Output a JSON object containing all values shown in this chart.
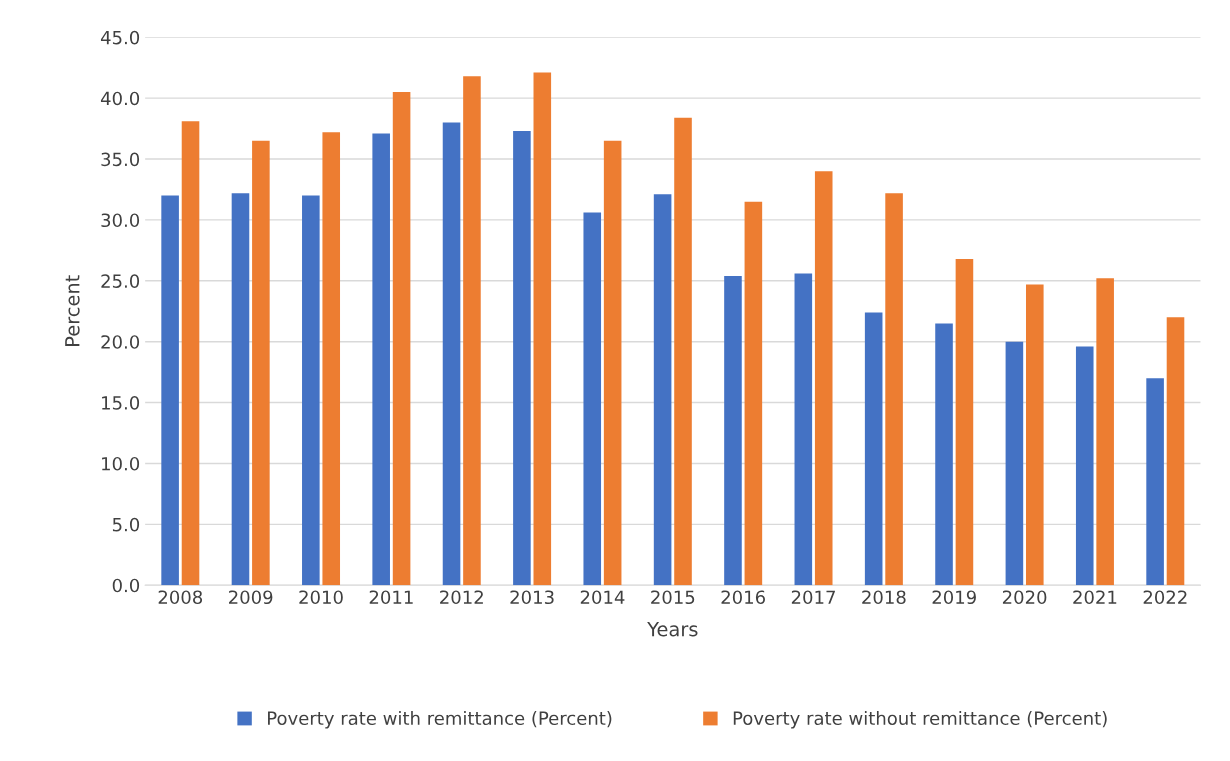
{
  "chart_data": {
    "type": "bar",
    "xlabel": "Years",
    "ylabel": "Percent",
    "categories": [
      "2008",
      "2009",
      "2010",
      "2011",
      "2012",
      "2013",
      "2014",
      "2015",
      "2016",
      "2017",
      "2018",
      "2019",
      "2020",
      "2021",
      "2022"
    ],
    "series": [
      {
        "name": "Poverty rate with remittance (Percent)",
        "color": "#4472c4",
        "values": [
          32.0,
          32.2,
          32.0,
          37.1,
          38.0,
          37.3,
          30.6,
          32.1,
          25.4,
          25.6,
          22.4,
          21.5,
          20.0,
          19.6,
          17.0
        ]
      },
      {
        "name": "Poverty rate without remittance (Percent)",
        "color": "#ed7d31",
        "values": [
          38.1,
          36.5,
          37.2,
          40.5,
          41.8,
          42.1,
          36.5,
          38.4,
          31.5,
          34.0,
          32.2,
          26.8,
          24.7,
          25.2,
          22.0
        ]
      }
    ],
    "ylim": [
      0,
      45
    ],
    "yticks": [
      {
        "value": 0,
        "label": "0.0"
      },
      {
        "value": 5,
        "label": "5.0"
      },
      {
        "value": 10,
        "label": "10.0"
      },
      {
        "value": 15,
        "label": "15.0"
      },
      {
        "value": 20,
        "label": "20.0"
      },
      {
        "value": 25,
        "label": "25.0"
      },
      {
        "value": 30,
        "label": "30.0"
      },
      {
        "value": 35,
        "label": "35.0"
      },
      {
        "value": 40,
        "label": "40.0"
      },
      {
        "value": 45,
        "label": "45.0"
      }
    ],
    "grid": "y",
    "legend": "bottom"
  }
}
